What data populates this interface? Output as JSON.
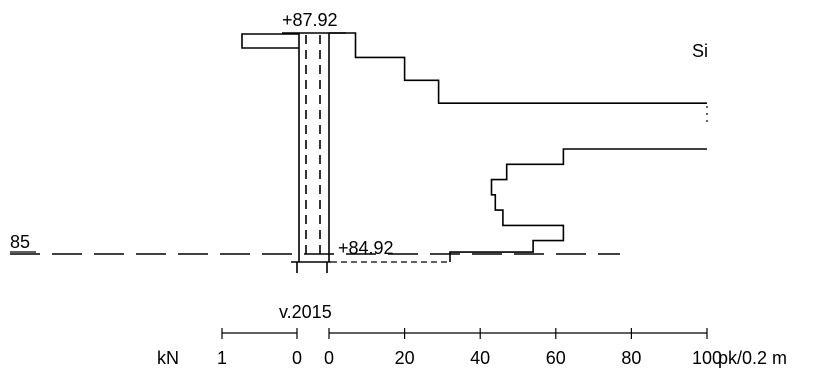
{
  "labels": {
    "top_elevation": "+87.92",
    "bottom_elevation": "+84.92",
    "level_marker": "85",
    "soil_type": "Si",
    "year": "v.2015",
    "unit_force": "kN",
    "unit_penetration": "pk/0.2 m"
  },
  "left_scale": {
    "ticks": [
      "1",
      "0"
    ]
  },
  "right_scale": {
    "ticks": [
      "0",
      "20",
      "40",
      "60",
      "80",
      "100"
    ]
  },
  "chart_data": {
    "type": "line",
    "series": [
      {
        "values_x": [
          0,
          7,
          7,
          20,
          20,
          29,
          29,
          100
        ],
        "values_y": [
          87.92,
          87.92,
          87.6,
          87.6,
          87.3,
          87.3,
          87.0,
          87.0
        ]
      },
      {
        "values_x": [
          100,
          62,
          62,
          47,
          47,
          43,
          43,
          44,
          44,
          46,
          46,
          62,
          62,
          54,
          54,
          32,
          32
        ],
        "values_y": [
          86.4,
          86.4,
          86.2,
          86.2,
          86.0,
          86.0,
          85.8,
          85.8,
          85.6,
          85.6,
          85.4,
          85.4,
          85.2,
          85.2,
          85.05,
          85.05,
          84.92
        ]
      }
    ],
    "xlim": [
      0,
      100
    ],
    "ylim": [
      84.92,
      87.92
    ],
    "xlabel": "pk/0.2 m"
  }
}
